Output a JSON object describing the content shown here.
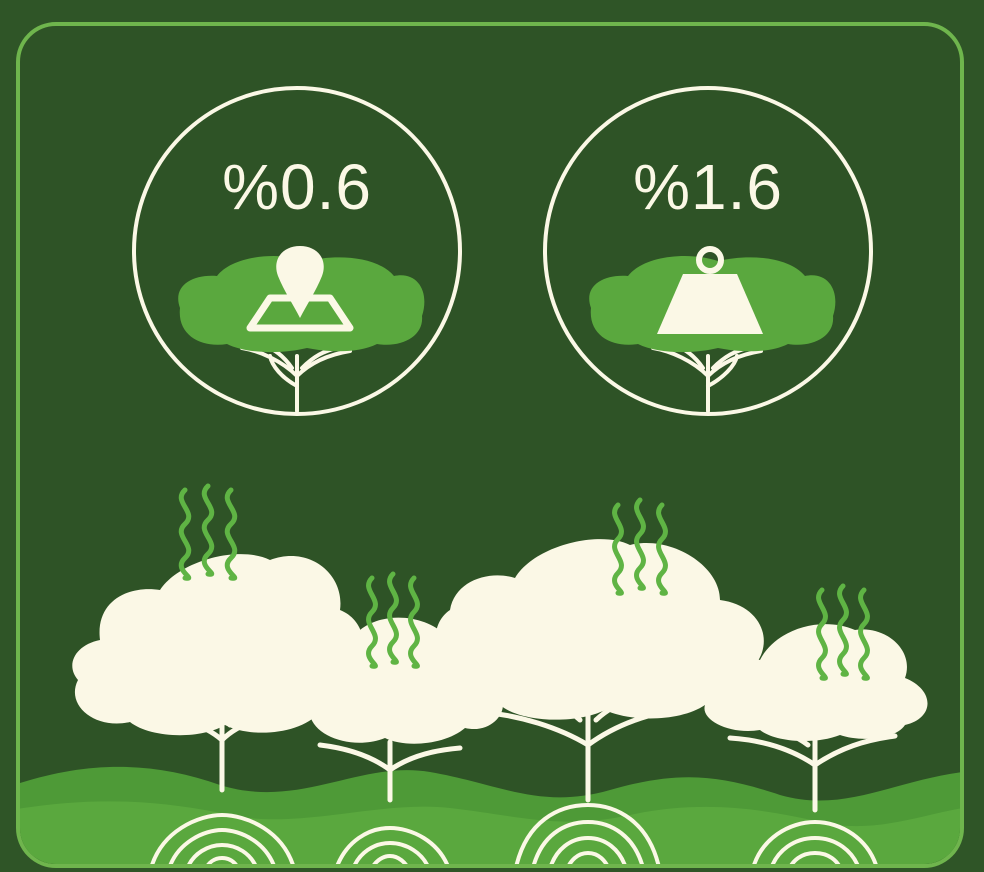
{
  "stats": [
    {
      "value": "%0.6",
      "icon": "map-pin-icon"
    },
    {
      "value": "%1.6",
      "icon": "weight-icon"
    }
  ],
  "colors": {
    "background": "#2f5527",
    "frame_border": "#6fb54d",
    "cream": "#fbf8e6",
    "canopy_green": "#5aa83e",
    "ground_green": "#4e9a37",
    "steam_green": "#5fb444"
  }
}
